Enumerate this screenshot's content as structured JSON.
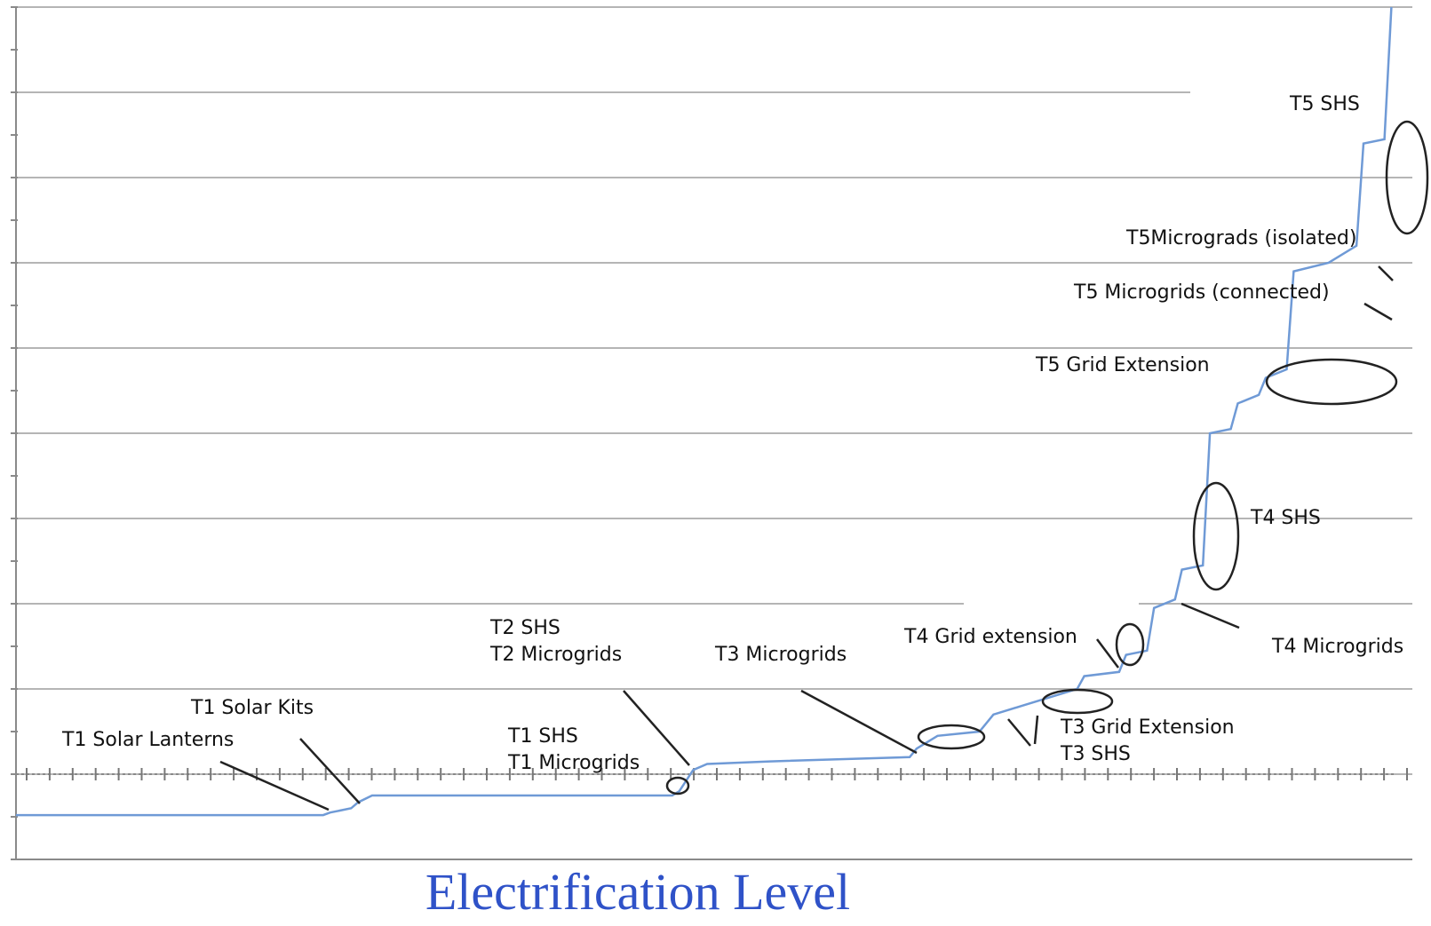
{
  "chart_data": {
    "type": "line",
    "title": "",
    "xlabel": "Electrification Level",
    "ylabel": "",
    "grid": true,
    "legend": "none",
    "colors": {
      "line": "#6f9ad6",
      "xlabel": "#2f52c8",
      "grid": "#b5b5b5",
      "axis": "#8a8a8a",
      "annotation": "#111111"
    },
    "series": [
      {
        "values": [
          [
            0,
            0.52
          ],
          [
            22,
            0.52
          ],
          [
            22.5,
            0.55
          ],
          [
            24,
            0.6
          ],
          [
            24.5,
            0.67
          ],
          [
            25.5,
            0.75
          ],
          [
            47,
            0.75
          ],
          [
            47.5,
            0.8
          ],
          [
            48.5,
            1.05
          ],
          [
            49.5,
            1.12
          ],
          [
            54,
            1.15
          ],
          [
            64,
            1.2
          ],
          [
            64.5,
            1.3
          ],
          [
            66,
            1.45
          ],
          [
            69,
            1.5
          ],
          [
            70,
            1.7
          ],
          [
            72,
            1.8
          ],
          [
            74,
            1.9
          ],
          [
            76,
            2.0
          ],
          [
            76.5,
            2.15
          ],
          [
            79,
            2.2
          ],
          [
            79.5,
            2.4
          ],
          [
            81,
            2.45
          ],
          [
            81.5,
            2.95
          ],
          [
            83,
            3.05
          ],
          [
            83.5,
            3.4
          ],
          [
            85,
            3.45
          ],
          [
            85.5,
            5.0
          ],
          [
            87,
            5.05
          ],
          [
            87.5,
            5.35
          ],
          [
            89,
            5.45
          ],
          [
            89.5,
            5.65
          ],
          [
            91,
            5.75
          ],
          [
            91.5,
            6.9
          ],
          [
            94,
            7.0
          ],
          [
            96,
            7.2
          ],
          [
            96.5,
            8.4
          ],
          [
            98,
            8.45
          ],
          [
            98.5,
            10.0
          ]
        ]
      }
    ],
    "annotations": [
      {
        "label": "T1 Solar Lanterns"
      },
      {
        "label": "T1 Solar Kits"
      },
      {
        "label": "T1 SHS"
      },
      {
        "label": "T1 Microgrids"
      },
      {
        "label": "T2 SHS"
      },
      {
        "label": "T2 Microgrids"
      },
      {
        "label": "T3 Microgrids"
      },
      {
        "label": "T3 Grid Extension"
      },
      {
        "label": "T3 SHS"
      },
      {
        "label": "T4 Grid extension"
      },
      {
        "label": "T4 Microgrids"
      },
      {
        "label": "T4 SHS"
      },
      {
        "label": "T5 Grid Extension"
      },
      {
        "label": "T5 Microgrids (connected)"
      },
      {
        "label": "T5Micrograds (isolated)"
      },
      {
        "label": "T5 SHS"
      }
    ]
  }
}
